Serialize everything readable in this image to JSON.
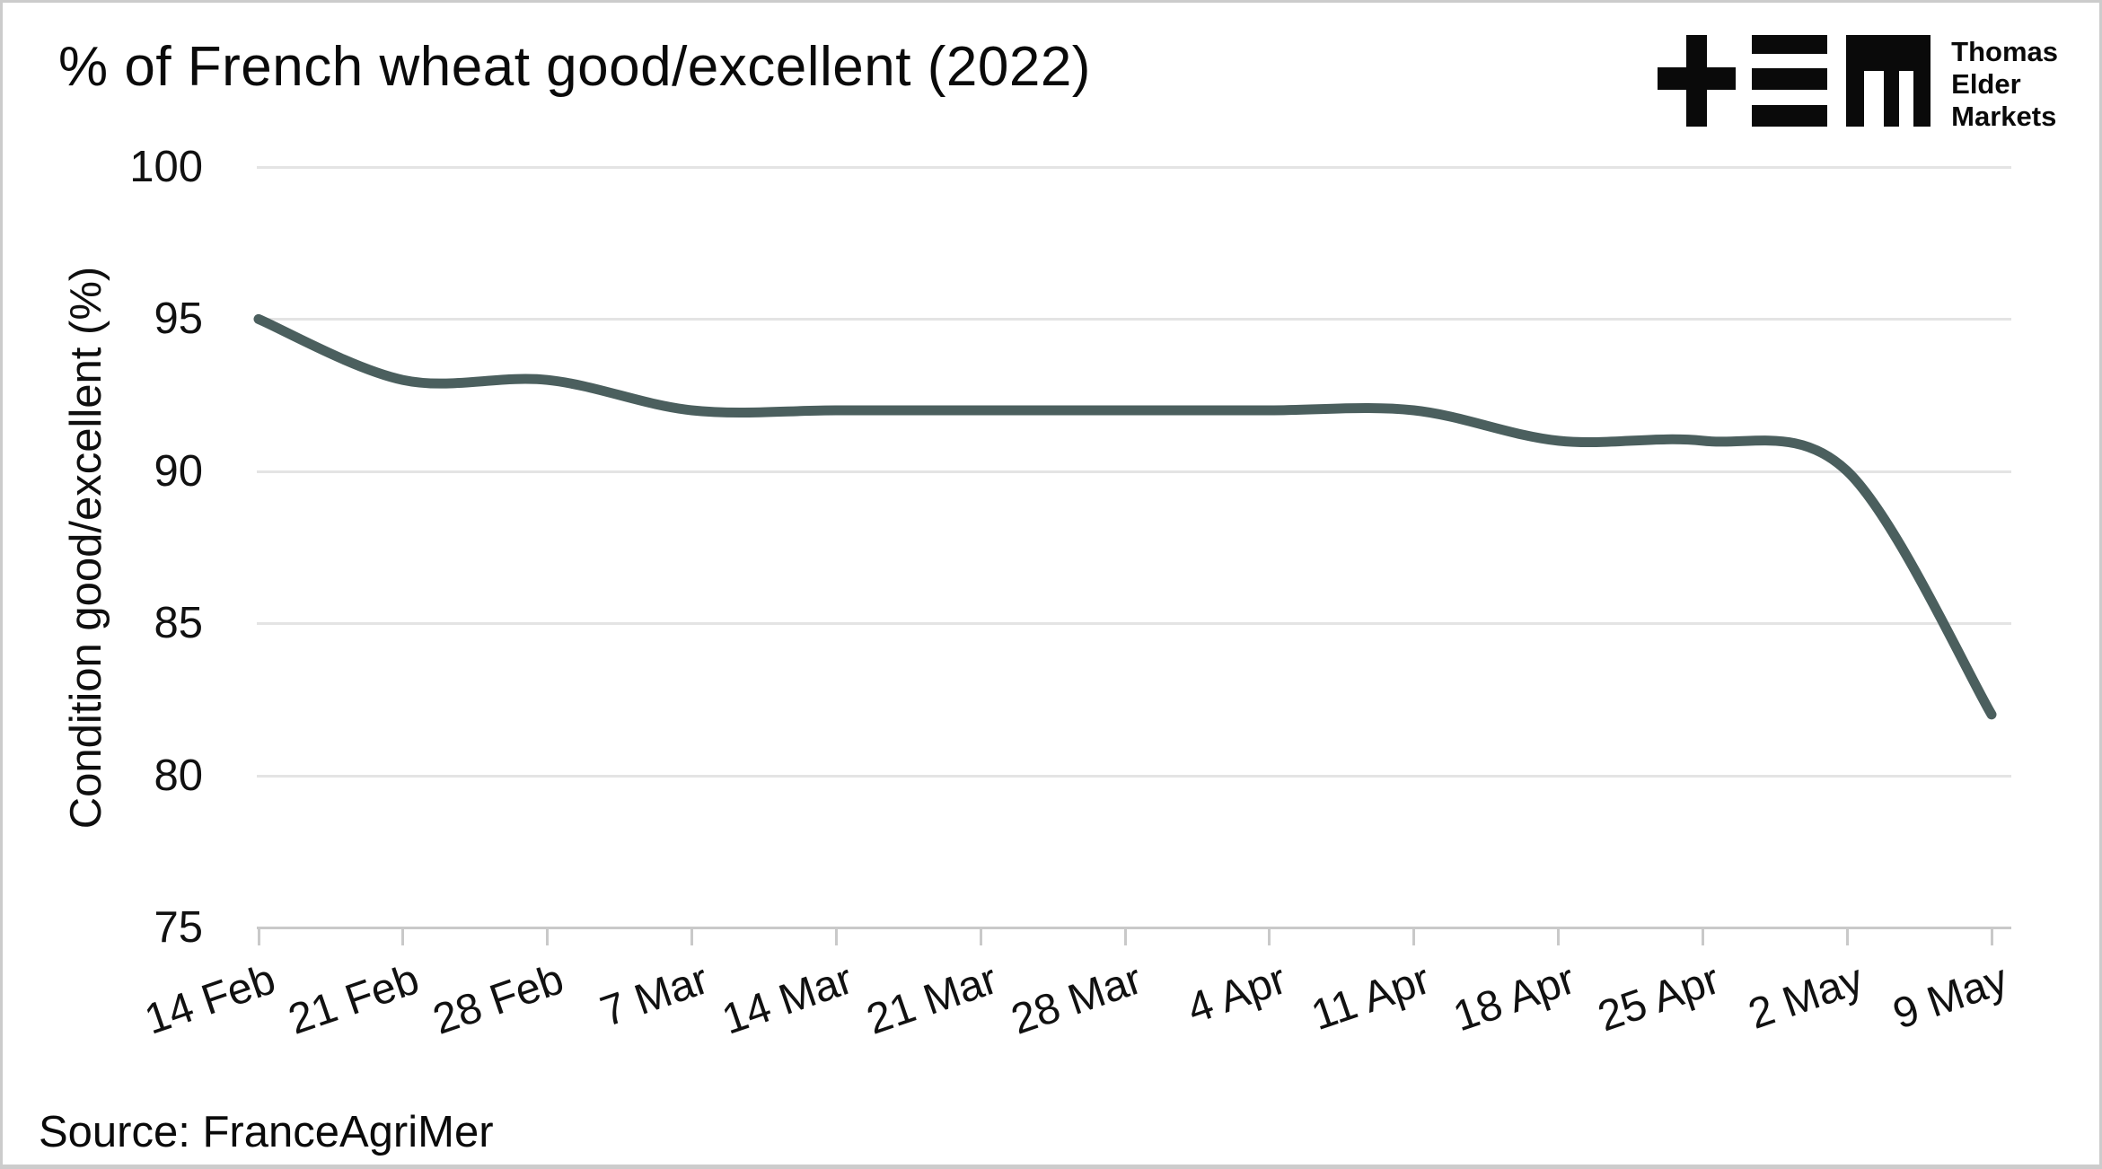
{
  "title": "% of French wheat good/excellent (2022)",
  "source": "Source: FranceAgriMer",
  "logo": {
    "lines": [
      "Thomas",
      "Elder",
      "Markets"
    ]
  },
  "chart_data": {
    "type": "line",
    "title": "% of French wheat good/excellent (2022)",
    "categories": [
      "14 Feb",
      "21 Feb",
      "28 Feb",
      "7 Mar",
      "14 Mar",
      "21 Mar",
      "28 Mar",
      "4 Apr",
      "11 Apr",
      "18 Apr",
      "25 Apr",
      "2 May",
      "9 May"
    ],
    "series": [
      {
        "name": "Condition good/excellent (%)",
        "values": [
          95,
          93,
          93,
          92,
          92,
          92,
          92,
          92,
          92,
          91,
          91,
          90,
          82
        ]
      }
    ],
    "xlabel": "",
    "ylabel": "Condition good/excellent (%)",
    "ylim": [
      75,
      100
    ],
    "yticks": [
      75,
      80,
      85,
      90,
      95,
      100
    ],
    "grid": "horizontal-only",
    "legend": "none",
    "smoothing": "spline",
    "x_label_rotation_deg": -19,
    "colors": {
      "line": "#4b5f5e",
      "grid": "#e4e4e4",
      "axis": "#c9c9c9",
      "text": "#111111",
      "title": "#0a0a0a"
    },
    "line_width": 11
  }
}
